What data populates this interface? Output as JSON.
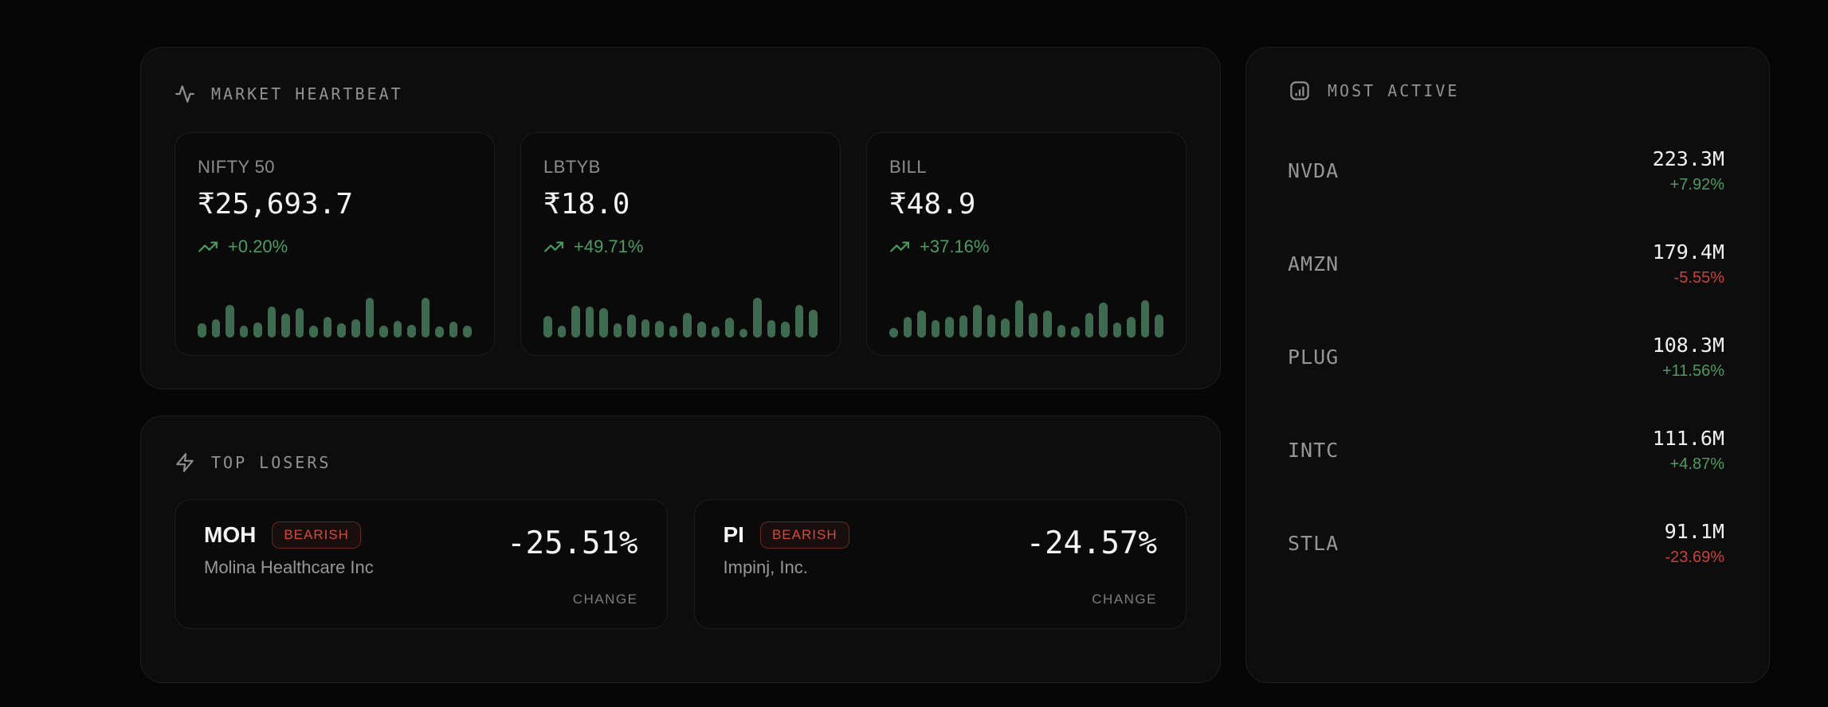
{
  "colors": {
    "positive_green": "#4d9b62",
    "negative_red": "#c8423a",
    "spark_bar_green": "#3e6b4f",
    "badge_red": "#d14a3e",
    "page_bg": "#060607",
    "panel_bg": "#0d0d0e",
    "card_bg": "#0a0a0b"
  },
  "market_heartbeat": {
    "title": "MARKET HEARTBEAT",
    "icon": "activity-icon",
    "tickers": [
      {
        "symbol": "NIFTY 50",
        "price": "₹25,693.7",
        "change": "+0.20%",
        "trend": "up"
      },
      {
        "symbol": "LBTYB",
        "price": "₹18.0",
        "change": "+49.71%",
        "trend": "up"
      },
      {
        "symbol": "BILL",
        "price": "₹48.9",
        "change": "+37.16%",
        "trend": "up"
      }
    ]
  },
  "top_losers": {
    "title": "TOP LOSERS",
    "icon": "zap-icon",
    "items": [
      {
        "symbol": "MOH",
        "badge": "BEARISH",
        "company": "Molina Healthcare Inc",
        "change": "-25.51%",
        "change_label": "CHANGE"
      },
      {
        "symbol": "PI",
        "badge": "BEARISH",
        "company": "Impinj, Inc.",
        "change": "-24.57%",
        "change_label": "CHANGE"
      }
    ]
  },
  "most_active": {
    "title": "MOST ACTIVE",
    "icon": "bar-chart-square-icon",
    "rows": [
      {
        "symbol": "NVDA",
        "volume": "223.3M",
        "change": "+7.92%",
        "direction": "up"
      },
      {
        "symbol": "AMZN",
        "volume": "179.4M",
        "change": "-5.55%",
        "direction": "down"
      },
      {
        "symbol": "PLUG",
        "volume": "108.3M",
        "change": "+11.56%",
        "direction": "up"
      },
      {
        "symbol": "INTC",
        "volume": "111.6M",
        "change": "+4.87%",
        "direction": "up"
      },
      {
        "symbol": "STLA",
        "volume": "91.1M",
        "change": "-23.69%",
        "direction": "down"
      }
    ]
  },
  "chart_data": [
    {
      "type": "bar",
      "title": "NIFTY 50 volume sparkline",
      "ylabel": "",
      "xlabel": "",
      "ylim": [
        0,
        1
      ],
      "grid": false,
      "values": [
        0.36,
        0.46,
        0.82,
        0.3,
        0.38,
        0.78,
        0.6,
        0.74,
        0.3,
        0.52,
        0.36,
        0.46,
        1.0,
        0.3,
        0.42,
        0.32,
        1.0,
        0.28,
        0.4,
        0.3
      ]
    },
    {
      "type": "bar",
      "title": "LBTYB volume sparkline",
      "ylabel": "",
      "xlabel": "",
      "ylim": [
        0,
        1
      ],
      "grid": false,
      "values": [
        0.55,
        0.3,
        0.8,
        0.78,
        0.75,
        0.36,
        0.58,
        0.46,
        0.42,
        0.3,
        0.62,
        0.4,
        0.28,
        0.5,
        0.22,
        1.0,
        0.45,
        0.4,
        0.82,
        0.7
      ]
    },
    {
      "type": "bar",
      "title": "BILL volume sparkline",
      "ylabel": "",
      "xlabel": "",
      "ylim": [
        0,
        1
      ],
      "grid": false,
      "values": [
        0.25,
        0.52,
        0.68,
        0.45,
        0.52,
        0.56,
        0.82,
        0.58,
        0.48,
        0.95,
        0.62,
        0.68,
        0.32,
        0.28,
        0.62,
        0.88,
        0.38,
        0.52,
        0.95,
        0.58
      ]
    }
  ]
}
